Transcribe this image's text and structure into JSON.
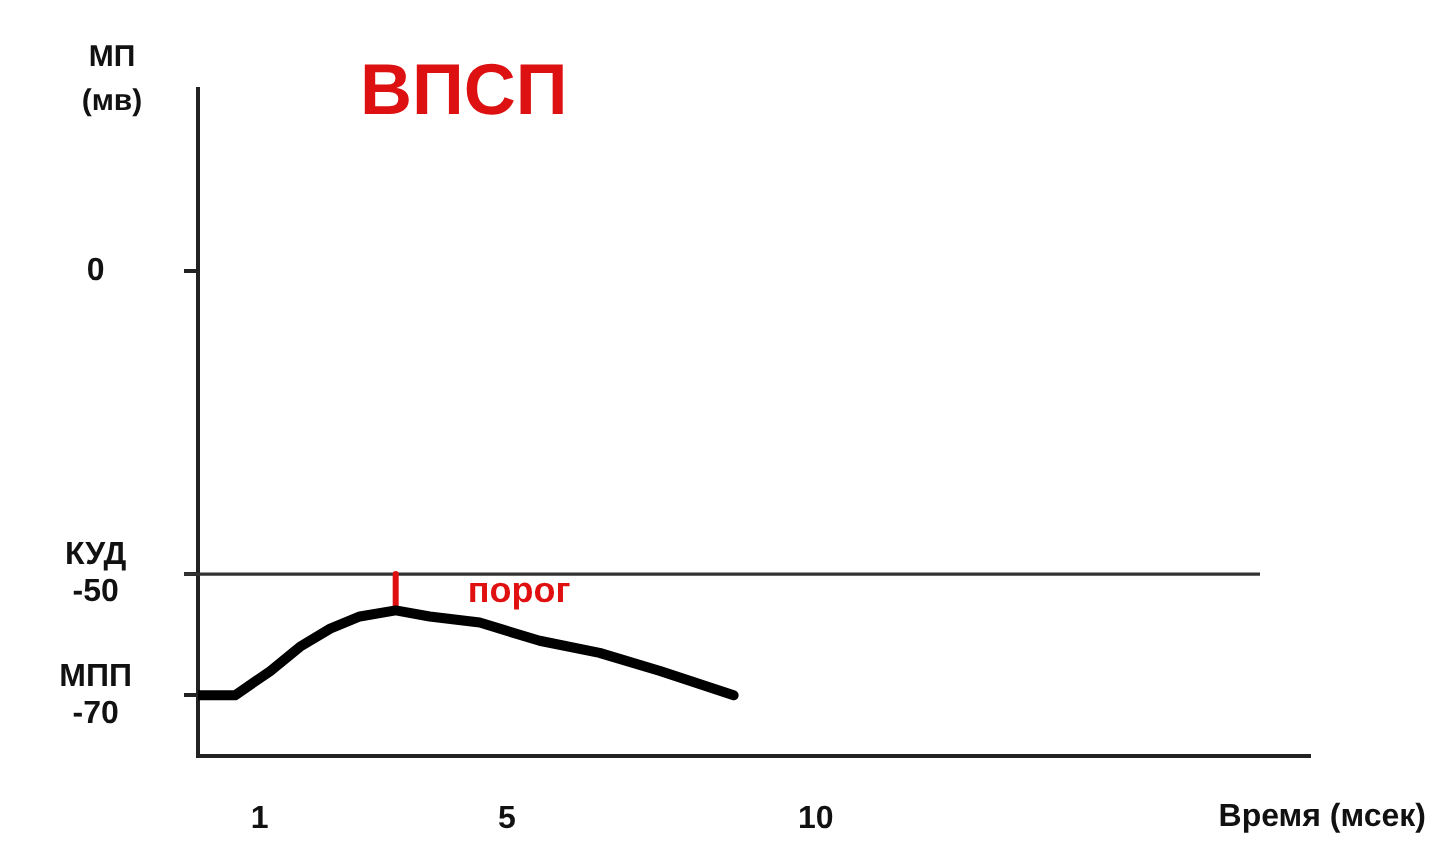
{
  "chart_data": {
    "type": "line",
    "title": "ВПСП",
    "xlabel": "Время (мсек)",
    "ylabel": "МП (мв)",
    "xlim": [
      0,
      18
    ],
    "xticks": [
      1,
      5,
      10
    ],
    "ylim": [
      -80,
      30
    ],
    "yticks": [
      0,
      {
        "value": -50,
        "label": "КУД -50"
      },
      {
        "value": -70,
        "label": "МПП -70"
      }
    ],
    "series": [
      {
        "color": "#000000",
        "x": [
          0,
          0.6,
          1.17,
          1.65,
          2.14,
          2.62,
          3.2,
          3.75,
          4.56,
          5.53,
          6.5,
          7.48,
          8.67
        ],
        "values": [
          -70,
          -70,
          -66,
          -62,
          -59,
          -57,
          -56,
          -57,
          -58,
          -61,
          -63,
          -66,
          -70
        ]
      },
      {
        "color": "#e01010",
        "x": [
          3.2,
          3.2
        ],
        "values": [
          -56,
          -50
        ]
      }
    ],
    "ref_lines": [
      {
        "axis": "y",
        "value": -50,
        "color": "#333333"
      }
    ],
    "annotations": [
      {
        "text": "порог",
        "x": 3.2,
        "y": -53
      }
    ],
    "legend": false,
    "marker": "none",
    "line_style": "solid"
  }
}
